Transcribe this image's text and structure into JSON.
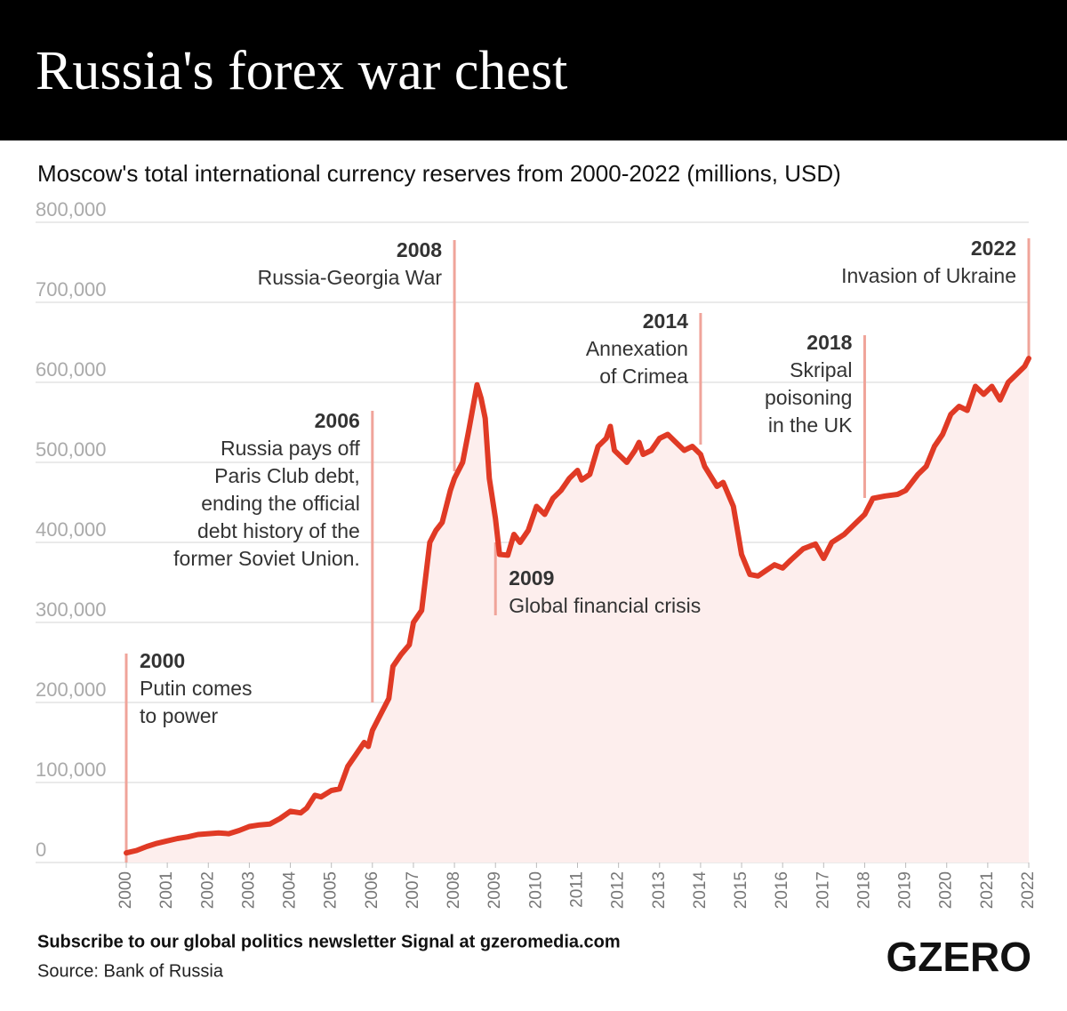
{
  "chart_data": {
    "type": "line",
    "title": "Russia's forex war chest",
    "subtitle": "Moscow's total international currency reserves from 2000-2022 (millions, USD)",
    "footer": "Subscribe to our global politics newsletter Signal at gzeromedia.com",
    "source": "Source: Bank of Russia",
    "logo": "GZERO",
    "color": "#e03a25",
    "area_color": "#fdeeed",
    "grid": true,
    "xlim": [
      2000,
      2022
    ],
    "xticks": [
      2000,
      2001,
      2002,
      2003,
      2004,
      2005,
      2006,
      2007,
      2008,
      2009,
      2010,
      2011,
      2012,
      2013,
      2014,
      2015,
      2016,
      2017,
      2018,
      2019,
      2020,
      2021,
      2022
    ],
    "ylim": [
      0,
      800000
    ],
    "yticks": [
      0,
      {
        "value": 100000,
        "label": "100,000"
      },
      {
        "value": 200000,
        "label": "200,000"
      },
      {
        "value": 300000,
        "label": "300,000"
      },
      {
        "value": 400000,
        "label": "400,000"
      },
      {
        "value": 500000,
        "label": "500,000"
      },
      {
        "value": 600000,
        "label": "600,000"
      },
      {
        "value": 700000,
        "label": "700,000"
      },
      {
        "value": 800000,
        "label": "800,000"
      }
    ],
    "x": [
      2000.0,
      2000.25,
      2000.5,
      2000.75,
      2001.0,
      2001.25,
      2001.5,
      2001.75,
      2002.0,
      2002.25,
      2002.5,
      2002.75,
      2003.0,
      2003.25,
      2003.5,
      2003.75,
      2004.0,
      2004.25,
      2004.4,
      2004.6,
      2004.75,
      2005.0,
      2005.2,
      2005.4,
      2005.6,
      2005.8,
      2005.9,
      2006.0,
      2006.2,
      2006.4,
      2006.5,
      2006.7,
      2006.9,
      2007.0,
      2007.2,
      2007.4,
      2007.55,
      2007.7,
      2007.9,
      2008.0,
      2008.2,
      2008.35,
      2008.55,
      2008.65,
      2008.75,
      2008.85,
      2009.0,
      2009.1,
      2009.3,
      2009.45,
      2009.6,
      2009.8,
      2010.0,
      2010.2,
      2010.4,
      2010.6,
      2010.8,
      2011.0,
      2011.1,
      2011.3,
      2011.5,
      2011.7,
      2011.8,
      2011.9,
      2012.2,
      2012.4,
      2012.5,
      2012.6,
      2012.8,
      2013.0,
      2013.2,
      2013.4,
      2013.6,
      2013.8,
      2014.0,
      2014.1,
      2014.4,
      2014.55,
      2014.8,
      2015.0,
      2015.2,
      2015.4,
      2015.6,
      2015.8,
      2016.0,
      2016.2,
      2016.5,
      2016.8,
      2017.0,
      2017.2,
      2017.5,
      2017.8,
      2018.0,
      2018.2,
      2018.5,
      2018.8,
      2019.0,
      2019.3,
      2019.5,
      2019.7,
      2019.9,
      2020.1,
      2020.3,
      2020.5,
      2020.7,
      2020.9,
      2021.1,
      2021.3,
      2021.5,
      2021.7,
      2021.9,
      2022.0
    ],
    "values": [
      12000,
      15000,
      20000,
      24000,
      27000,
      30000,
      32000,
      35000,
      36000,
      37000,
      36000,
      40000,
      45000,
      47000,
      48000,
      55000,
      64000,
      62000,
      68000,
      84000,
      82000,
      90000,
      92000,
      120000,
      135000,
      150000,
      145000,
      165000,
      185000,
      205000,
      245000,
      260000,
      272000,
      300000,
      315000,
      400000,
      415000,
      425000,
      465000,
      480000,
      500000,
      540000,
      597000,
      580000,
      555000,
      480000,
      430000,
      385000,
      384000,
      410000,
      400000,
      415000,
      445000,
      435000,
      455000,
      465000,
      480000,
      490000,
      478000,
      485000,
      520000,
      530000,
      545000,
      515000,
      500000,
      515000,
      525000,
      510000,
      515000,
      530000,
      535000,
      525000,
      515000,
      520000,
      510000,
      495000,
      470000,
      475000,
      445000,
      385000,
      360000,
      358000,
      365000,
      372000,
      368000,
      378000,
      392000,
      398000,
      380000,
      400000,
      410000,
      425000,
      435000,
      455000,
      458000,
      460000,
      465000,
      485000,
      495000,
      520000,
      535000,
      560000,
      570000,
      565000,
      595000,
      585000,
      595000,
      578000,
      600000,
      610000,
      620000,
      630000
    ],
    "annotations": [
      {
        "x": 2000,
        "year": "2000",
        "lines": [
          "Putin comes",
          "to power"
        ]
      },
      {
        "x": 2006,
        "year": "2006",
        "lines": [
          "Russia pays off",
          "Paris Club debt,",
          "ending the official",
          "debt history of the",
          "former Soviet Union."
        ]
      },
      {
        "x": 2008,
        "year": "2008",
        "lines": [
          "Russia-Georgia War"
        ]
      },
      {
        "x": 2009,
        "year": "2009",
        "lines": [
          "Global financial crisis"
        ]
      },
      {
        "x": 2014,
        "year": "2014",
        "lines": [
          "Annexation",
          "of Crimea"
        ]
      },
      {
        "x": 2018,
        "year": "2018",
        "lines": [
          "Skripal",
          "poisoning",
          "in the UK"
        ]
      },
      {
        "x": 2022,
        "year": "2022",
        "lines": [
          "Invasion of Ukraine"
        ]
      }
    ]
  }
}
